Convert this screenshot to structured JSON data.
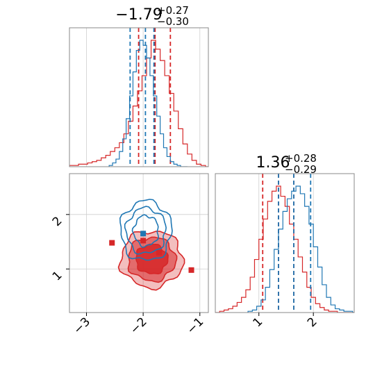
{
  "chart_data": {
    "type": "corner",
    "titles": [
      {
        "value": "−1.79",
        "plus": "+0.27",
        "minus": "−0.30"
      },
      {
        "value": "1.36",
        "plus": "+0.28",
        "minus": "−0.29"
      }
    ],
    "axes": {
      "param1": {
        "range": [
          -3.3,
          -0.85
        ],
        "ticks": [
          -3,
          -2,
          -1
        ],
        "tick_labels": [
          "−3",
          "−2",
          "−1"
        ]
      },
      "param2": {
        "range": [
          0.2,
          2.75
        ],
        "ticks": [
          1,
          2
        ],
        "tick_labels": [
          "1",
          "2"
        ]
      }
    },
    "colors": {
      "red": "#d62728",
      "blue": "#1f77b4"
    },
    "series": [
      {
        "color": "red",
        "quantiles_param1": [
          -2.08,
          -1.79,
          -1.52
        ],
        "quantiles_param2": [
          1.07,
          1.36,
          1.64
        ],
        "hist_param1": {
          "x": [
            -3.3,
            -3.22,
            -3.14,
            -3.06,
            -2.98,
            -2.9,
            -2.82,
            -2.74,
            -2.66,
            -2.58,
            -2.5,
            -2.42,
            -2.34,
            -2.26,
            -2.18,
            -2.1,
            -2.02,
            -1.94,
            -1.86,
            -1.78,
            -1.7,
            -1.62,
            -1.54,
            -1.46,
            -1.38,
            -1.3,
            -1.22,
            -1.14,
            -1.06,
            -0.98,
            -0.9
          ],
          "density": [
            0.01,
            0.01,
            0.02,
            0.02,
            0.03,
            0.04,
            0.05,
            0.07,
            0.09,
            0.12,
            0.15,
            0.19,
            0.26,
            0.36,
            0.48,
            0.6,
            0.72,
            0.86,
            1.0,
            0.93,
            0.84,
            0.72,
            0.58,
            0.44,
            0.3,
            0.18,
            0.1,
            0.05,
            0.02,
            0.01,
            0.0
          ]
        },
        "hist_param2": {
          "x": [
            0.2,
            0.28,
            0.36,
            0.44,
            0.52,
            0.6,
            0.68,
            0.76,
            0.84,
            0.92,
            1.0,
            1.08,
            1.16,
            1.24,
            1.32,
            1.4,
            1.48,
            1.56,
            1.64,
            1.72,
            1.8,
            1.88,
            1.96,
            2.04,
            2.12,
            2.2,
            2.28,
            2.36,
            2.44,
            2.52,
            2.6,
            2.68
          ],
          "density": [
            0.0,
            0.01,
            0.02,
            0.03,
            0.05,
            0.08,
            0.12,
            0.18,
            0.28,
            0.42,
            0.58,
            0.74,
            0.88,
            0.96,
            1.0,
            0.92,
            0.84,
            0.7,
            0.58,
            0.44,
            0.32,
            0.2,
            0.12,
            0.07,
            0.04,
            0.02,
            0.01,
            0.01,
            0.0,
            0.0,
            0.0,
            0.0
          ]
        },
        "contour_center": [
          -1.85,
          1.18
        ],
        "contour_radii": [
          [
            0.55,
            0.52
          ],
          [
            0.42,
            0.4
          ],
          [
            0.28,
            0.27
          ]
        ],
        "markers": [
          [
            -2.55,
            1.48
          ],
          [
            -2.0,
            1.52
          ],
          [
            -1.72,
            1.3
          ],
          [
            -1.15,
            0.98
          ]
        ]
      },
      {
        "color": "blue",
        "quantiles_param1": [
          -2.23,
          -1.96,
          -1.81
        ],
        "quantiles_param2": [
          1.36,
          1.64,
          1.95
        ],
        "hist_param1": {
          "x": [
            -2.6,
            -2.54,
            -2.48,
            -2.42,
            -2.36,
            -2.3,
            -2.24,
            -2.18,
            -2.12,
            -2.06,
            -2.0,
            -1.94,
            -1.88,
            -1.82,
            -1.76,
            -1.7,
            -1.64,
            -1.58,
            -1.52,
            -1.46,
            -1.4,
            -1.34,
            -1.28
          ],
          "density": [
            0.01,
            0.03,
            0.06,
            0.12,
            0.22,
            0.38,
            0.56,
            0.75,
            0.92,
            1.0,
            0.96,
            0.86,
            0.72,
            0.56,
            0.4,
            0.26,
            0.15,
            0.08,
            0.04,
            0.02,
            0.01,
            0.0,
            0.0
          ]
        },
        "hist_param2": {
          "x": [
            0.8,
            0.88,
            0.96,
            1.04,
            1.12,
            1.2,
            1.28,
            1.36,
            1.44,
            1.52,
            1.6,
            1.68,
            1.76,
            1.84,
            1.92,
            2.0,
            2.08,
            2.16,
            2.24,
            2.32,
            2.4,
            2.48,
            2.56,
            2.64,
            2.72
          ],
          "density": [
            0.01,
            0.02,
            0.05,
            0.1,
            0.2,
            0.34,
            0.5,
            0.66,
            0.8,
            0.9,
            0.96,
            1.0,
            0.94,
            0.84,
            0.7,
            0.52,
            0.36,
            0.22,
            0.12,
            0.06,
            0.03,
            0.02,
            0.01,
            0.01,
            0.0
          ]
        },
        "contour_center": [
          -1.95,
          1.7
        ],
        "contour_radii": [
          [
            0.45,
            0.55
          ],
          [
            0.35,
            0.42
          ],
          [
            0.22,
            0.28
          ]
        ],
        "markers": [
          [
            -2.0,
            1.65
          ]
        ]
      }
    ]
  }
}
